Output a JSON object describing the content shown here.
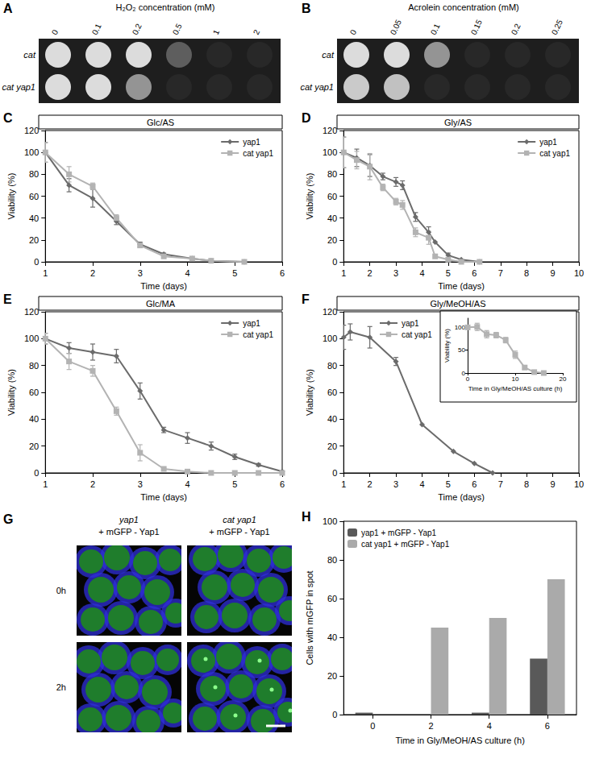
{
  "chart_data": [
    {
      "type": "line",
      "title": "Glc/AS",
      "annotations": [
        "C"
      ],
      "xlabel": "Time (days)",
      "ylabel": "Viability (%)",
      "x": [
        1,
        1.5,
        2,
        2.5,
        3,
        3.5,
        4.1,
        4.5,
        5.2
      ],
      "series": [
        {
          "name": "yap1",
          "color": "#6b6b6b",
          "marker": "diamond",
          "values": [
            100,
            70,
            58,
            37,
            16,
            7,
            3,
            1,
            0
          ],
          "errors": [
            9,
            6,
            8,
            3,
            2,
            1,
            null,
            null,
            null
          ]
        },
        {
          "name": "cat yap1",
          "color": "#b3b3b3",
          "marker": "square",
          "values": [
            100,
            80,
            69,
            40,
            15,
            5,
            3,
            1,
            0
          ],
          "errors": [
            9,
            7,
            3,
            3,
            2,
            1,
            null,
            null,
            null
          ]
        }
      ],
      "xlim": [
        1,
        6
      ],
      "xticks": [
        1,
        2,
        3,
        4,
        5,
        6
      ],
      "ylim": [
        0,
        120
      ],
      "yticks": [
        0,
        20,
        40,
        60,
        80,
        100,
        120
      ],
      "grid": false,
      "legend": "upper right"
    },
    {
      "type": "line",
      "title": "Gly/AS",
      "annotations": [
        "D"
      ],
      "xlabel": "Time (days)",
      "ylabel": "Viability (%)",
      "x": [
        1,
        1.5,
        2,
        2.5,
        3,
        3.25,
        3.75,
        4.25,
        4.5,
        5,
        5.5,
        6.2
      ],
      "series": [
        {
          "name": "yap1",
          "color": "#6b6b6b",
          "marker": "diamond",
          "values": [
            100,
            95,
            88,
            78,
            73,
            70,
            41,
            27,
            18,
            6,
            2,
            0
          ],
          "errors": [
            14,
            8,
            10,
            3,
            4,
            4,
            4,
            5,
            null,
            2,
            null,
            null
          ]
        },
        {
          "name": "cat yap1",
          "color": "#b3b3b3",
          "marker": "square",
          "values": [
            100,
            93,
            87,
            68,
            55,
            52,
            27,
            22,
            5,
            2,
            0,
            0
          ],
          "errors": [
            14,
            8,
            12,
            3,
            3,
            4,
            4,
            6,
            null,
            null,
            null,
            null
          ]
        }
      ],
      "xlim": [
        1,
        10
      ],
      "xticks": [
        1,
        2,
        3,
        4,
        5,
        6,
        7,
        8,
        9,
        10
      ],
      "ylim": [
        0,
        120
      ],
      "yticks": [
        0,
        20,
        40,
        60,
        80,
        100,
        120
      ],
      "grid": false,
      "legend": "upper right"
    },
    {
      "type": "line",
      "title": "Glc/MA",
      "annotations": [
        "E"
      ],
      "xlabel": "Time (days)",
      "ylabel": "Viability (%)",
      "x": [
        1,
        1.5,
        2,
        2.5,
        3,
        3.5,
        4,
        4.5,
        5,
        5.5,
        6
      ],
      "series": [
        {
          "name": "yap1",
          "color": "#6b6b6b",
          "marker": "diamond",
          "values": [
            100,
            93,
            90,
            87,
            61,
            32,
            26,
            20,
            12,
            6,
            1
          ],
          "errors": [
            4,
            4,
            6,
            5,
            6,
            2,
            4,
            3,
            2,
            1,
            null
          ]
        },
        {
          "name": "cat yap1",
          "color": "#b3b3b3",
          "marker": "square",
          "values": [
            100,
            83,
            76,
            46,
            15,
            3,
            1,
            0,
            0,
            0,
            0
          ],
          "errors": [
            4,
            6,
            4,
            3,
            6,
            1,
            null,
            null,
            null,
            null,
            null
          ]
        }
      ],
      "xlim": [
        1,
        6
      ],
      "xticks": [
        1,
        2,
        3,
        4,
        5,
        6
      ],
      "ylim": [
        0,
        120
      ],
      "yticks": [
        0,
        20,
        40,
        60,
        80,
        100,
        120
      ],
      "grid": false,
      "legend": "upper right"
    },
    {
      "type": "line",
      "title": "Gly/MeOH/AS",
      "annotations": [
        "F"
      ],
      "xlabel": "Time (days)",
      "ylabel": "Viability (%)",
      "series": [
        {
          "name": "yap1",
          "color": "#6b6b6b",
          "marker": "diamond",
          "x": [
            1,
            1.25,
            2,
            3,
            4,
            5.2,
            6,
            6.7
          ],
          "values": [
            101,
            105,
            101,
            83,
            36,
            16,
            7,
            0
          ],
          "errors": [
            9,
            6,
            8,
            3,
            null,
            null,
            null,
            null
          ]
        },
        {
          "name": "cat yap1",
          "color": "#b3b3b3",
          "marker": "square",
          "x": [],
          "values": [],
          "errors": []
        }
      ],
      "xlim": [
        1,
        10
      ],
      "xticks": [
        1,
        2,
        3,
        4,
        5,
        6,
        7,
        8,
        9,
        10
      ],
      "ylim": [
        0,
        120
      ],
      "yticks": [
        0,
        20,
        40,
        60,
        80,
        100,
        120
      ],
      "grid": false,
      "legend": "upper left",
      "inset": {
        "type": "line",
        "xlabel": "Time in Gly/MeOH/AS culture (h)",
        "ylabel": "Viability (%)",
        "series": [
          {
            "name": "cat yap1",
            "color": "#b3b3b3",
            "marker": "square",
            "x": [
              0,
              2,
              4,
              6,
              8,
              10,
              12,
              14,
              16
            ],
            "values": [
              100,
              101,
              85,
              83,
              72,
              40,
              12,
              2,
              0
            ],
            "errors": [
              5,
              8,
              8,
              6,
              6,
              8,
              4,
              null,
              null
            ]
          }
        ],
        "xlim": [
          0,
          20
        ],
        "xticks": [
          0,
          10,
          20
        ],
        "ylim": [
          0,
          120
        ],
        "yticks": [
          0,
          50,
          100
        ]
      }
    },
    {
      "type": "bar",
      "annotations": [
        "H"
      ],
      "xlabel": "Time in Gly/MeOH/AS culture (h)",
      "ylabel": "Cells with mGFP in spot",
      "categories": [
        "0",
        "2",
        "4",
        "6"
      ],
      "series": [
        {
          "name": "yap1 + mGFP - Yap1",
          "color": "#595959",
          "values": [
            1,
            0,
            1,
            29
          ]
        },
        {
          "name": "cat yap1 + mGFP - Yap1",
          "color": "#aaaaaa",
          "values": [
            0,
            45,
            50,
            70
          ]
        }
      ],
      "ylim": [
        0,
        100
      ],
      "yticks": [
        0,
        20,
        40,
        60,
        80,
        100
      ],
      "grid": false,
      "legend": "upper left"
    }
  ],
  "spot_assays": [
    {
      "panel": "A",
      "header": "H₂O₂ concentration (mM)",
      "columns": [
        "0",
        "0.1",
        "0.2",
        "0.5",
        "1",
        "2"
      ],
      "rows": [
        {
          "strain": "cat",
          "growth": [
            1,
            1,
            1,
            0.3,
            0,
            0
          ]
        },
        {
          "strain": "cat yap1",
          "growth": [
            1,
            1,
            0.6,
            0,
            0,
            0
          ]
        }
      ]
    },
    {
      "panel": "B",
      "header": "Acrolein concentration (mM)",
      "columns": [
        "0",
        "0.05",
        "0.1",
        "0.15",
        "0.2",
        "0.25"
      ],
      "rows": [
        {
          "strain": "cat",
          "growth": [
            1,
            1,
            0.6,
            0,
            0,
            0
          ]
        },
        {
          "strain": "cat yap1",
          "growth": [
            0.9,
            0.85,
            0,
            0,
            0,
            0
          ]
        }
      ]
    }
  ],
  "micrographs": {
    "panel": "G",
    "columns": [
      {
        "strain": "yap1",
        "construct": "+ mGFP - Yap1"
      },
      {
        "strain": "cat yap1",
        "construct": "+ mGFP - Yap1"
      }
    ],
    "rows": [
      "0h",
      "2h"
    ]
  }
}
